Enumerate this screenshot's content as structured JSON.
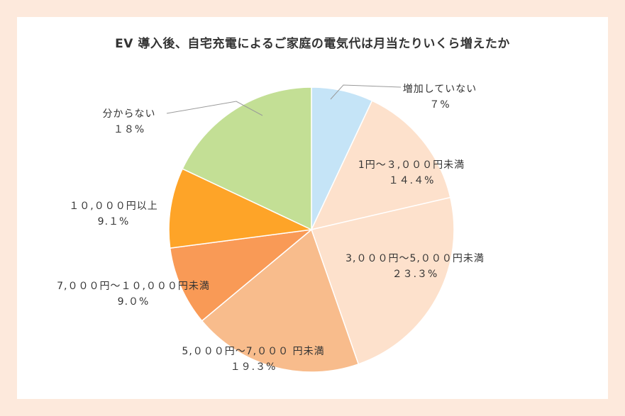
{
  "chart_data": {
    "type": "pie",
    "title": "EV 導入後、自宅充電によるご家庭の電気代は月当たりいくら増えたか",
    "slices": [
      {
        "label": "増加していない",
        "value": 7,
        "value_label": "７%",
        "color": "#c5e4f7"
      },
      {
        "label": "1円～３,０００円未満",
        "value": 14.4,
        "value_label": "１４.４%",
        "color": "#fde1cc"
      },
      {
        "label": "3,０００円～5,０００円未満",
        "value": 23.3,
        "value_label": "２３.３%",
        "color": "#fde1cc"
      },
      {
        "label": "5,０００円～7,０００ 円未満",
        "value": 19.3,
        "value_label": "１９.３%",
        "color": "#f8bc8c"
      },
      {
        "label": "7,０００円～１０,０００円未満",
        "value": 9.0,
        "value_label": "9.０%",
        "color": "#f99a56"
      },
      {
        "label": "１０,０００円以上",
        "value": 9.1,
        "value_label": "9.１%",
        "color": "#fea428"
      },
      {
        "label": "分からない",
        "value": 18,
        "value_label": "１８%",
        "color": "#c3df95"
      }
    ]
  }
}
